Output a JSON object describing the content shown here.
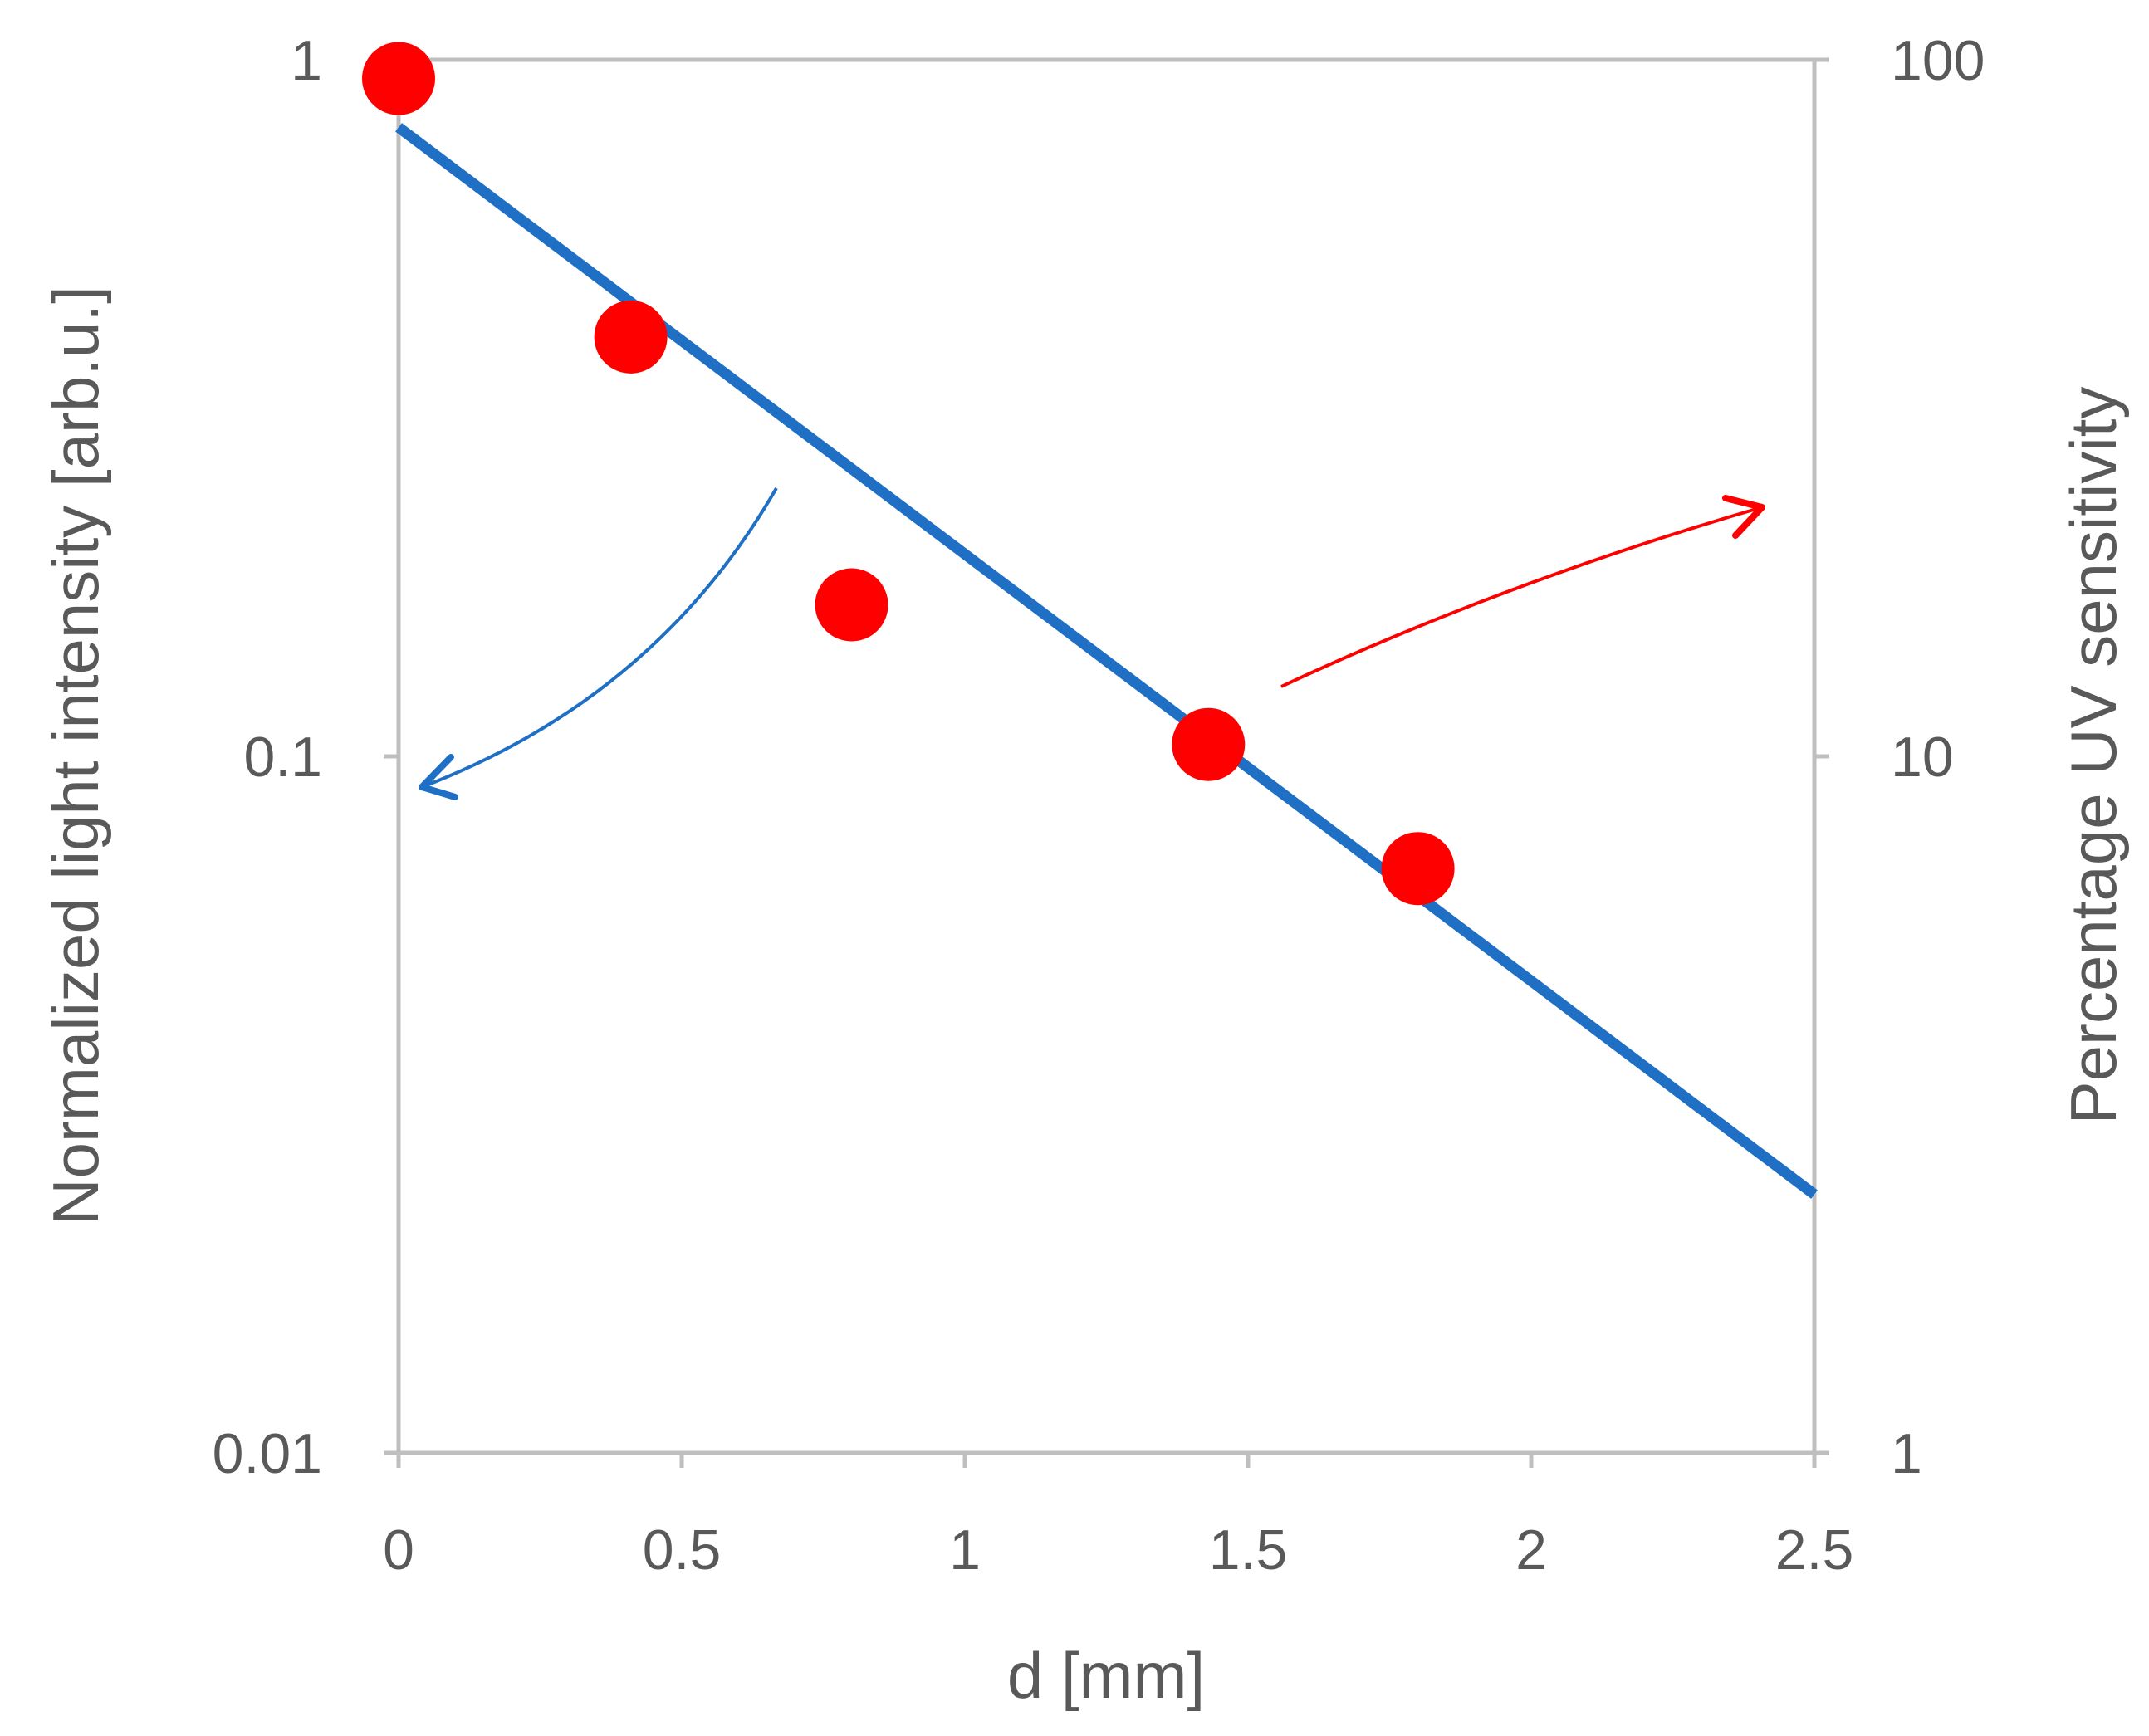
{
  "chart_data": {
    "type": "scatter",
    "title": "",
    "xlabel": "d [mm]",
    "ylabel_left": "Normalized light intensity [arb.u.]",
    "ylabel_right": "Percentage UV sensitivity",
    "xlim": [
      0,
      2.5
    ],
    "ylim_left": [
      0.01,
      1
    ],
    "ylim_right": [
      1,
      100
    ],
    "yscale": "log",
    "grid": false,
    "x_ticks": [
      0,
      0.5,
      1,
      1.5,
      2,
      2.5
    ],
    "x_tick_labels": [
      "0",
      "0.5",
      "1",
      "1.5",
      "2",
      "2.5"
    ],
    "y_left_ticks": [
      0.01,
      0.1,
      1
    ],
    "y_left_tick_labels": [
      "0.01",
      "0.1",
      "1"
    ],
    "y_right_ticks": [
      1,
      10,
      100
    ],
    "y_right_tick_labels": [
      "1",
      "10",
      "100"
    ],
    "series": [
      {
        "name": "Percentage UV sensitivity",
        "kind": "scatter",
        "axis": "right",
        "color": "#ff0000",
        "points": [
          {
            "x": 0.0,
            "y": 94
          },
          {
            "x": 0.41,
            "y": 40
          },
          {
            "x": 0.8,
            "y": 16.5
          },
          {
            "x": 1.43,
            "y": 10.4
          },
          {
            "x": 1.8,
            "y": 6.9
          }
        ]
      },
      {
        "name": "Normalized light intensity",
        "kind": "line",
        "axis": "left",
        "color": "#1f6fc5",
        "points": [
          {
            "x": 0.0,
            "y": 0.8
          },
          {
            "x": 2.5,
            "y": 0.0235
          }
        ]
      }
    ],
    "annotations": [
      {
        "kind": "curved-arrow",
        "color": "#1f6fc5",
        "meaning": "line belongs to left axis",
        "direction": "left"
      },
      {
        "kind": "curved-arrow",
        "color": "#ff0000",
        "meaning": "points belong to right axis",
        "direction": "right"
      }
    ]
  }
}
